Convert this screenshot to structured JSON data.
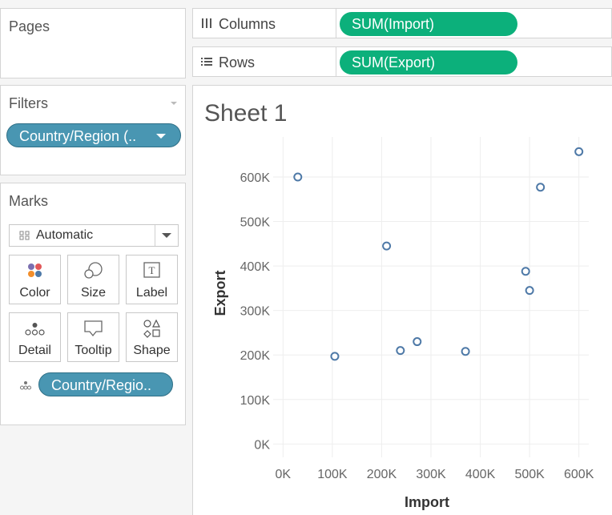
{
  "panels": {
    "pages": {
      "title": "Pages"
    },
    "filters": {
      "title": "Filters",
      "pill": "Country/Region (.."
    },
    "marks": {
      "title": "Marks",
      "mark_type": "Automatic",
      "cards": [
        {
          "label": "Color",
          "icon": "color-icon"
        },
        {
          "label": "Size",
          "icon": "size-icon"
        },
        {
          "label": "Label",
          "icon": "label-icon"
        },
        {
          "label": "Detail",
          "icon": "detail-icon"
        },
        {
          "label": "Tooltip",
          "icon": "tooltip-icon"
        },
        {
          "label": "Shape",
          "icon": "shape-icon"
        }
      ],
      "detail_pill": "Country/Regio.."
    }
  },
  "shelves": {
    "columns": {
      "label": "Columns",
      "pill": "SUM(Import)"
    },
    "rows": {
      "label": "Rows",
      "pill": "SUM(Export)"
    }
  },
  "colors": {
    "green_pill": "#0cb07b",
    "blue_pill": "#4996b2",
    "mark_stroke": "#4e79a7"
  },
  "sheet": {
    "title": "Sheet 1"
  },
  "chart_data": {
    "type": "scatter",
    "xlabel": "Import",
    "ylabel": "Export",
    "xlim": [
      -20000,
      620000
    ],
    "ylim": [
      -30000,
      690000
    ],
    "x_ticks": [
      0,
      100000,
      200000,
      300000,
      400000,
      500000,
      600000
    ],
    "x_tick_labels": [
      "0K",
      "100K",
      "200K",
      "300K",
      "400K",
      "500K",
      "600K"
    ],
    "y_ticks": [
      0,
      100000,
      200000,
      300000,
      400000,
      500000,
      600000
    ],
    "y_tick_labels": [
      "0K",
      "100K",
      "200K",
      "300K",
      "400K",
      "500K",
      "600K"
    ],
    "grid": true,
    "points": [
      {
        "x": 30000,
        "y": 600000
      },
      {
        "x": 105000,
        "y": 197000
      },
      {
        "x": 210000,
        "y": 445000
      },
      {
        "x": 238000,
        "y": 210000
      },
      {
        "x": 272000,
        "y": 230000
      },
      {
        "x": 370000,
        "y": 208000
      },
      {
        "x": 492000,
        "y": 388000
      },
      {
        "x": 500000,
        "y": 345000
      },
      {
        "x": 522000,
        "y": 577000
      },
      {
        "x": 600000,
        "y": 657000
      }
    ]
  }
}
